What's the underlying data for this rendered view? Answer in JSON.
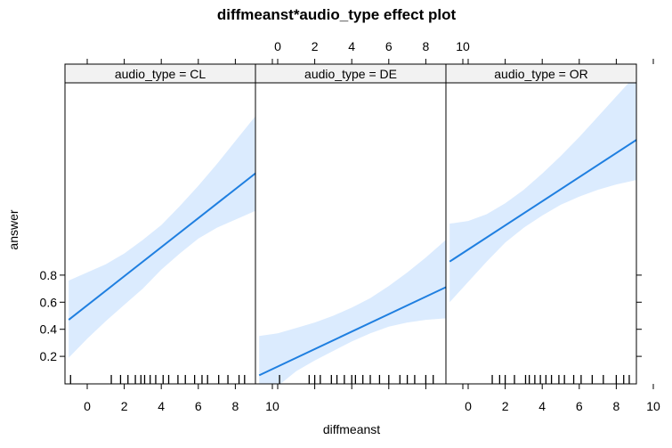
{
  "chart_data": {
    "type": "line",
    "title": "diffmeanst*audio_type effect plot",
    "xlabel": "diffmeanst",
    "ylabel": "answer",
    "x_ticks": [
      0,
      2,
      4,
      6,
      8,
      10
    ],
    "y_ticks": [
      0.2,
      0.4,
      0.6,
      0.8
    ],
    "xlim": [
      -1.15,
      10.3
    ],
    "panels": [
      {
        "strip": "audio_type = CL",
        "line": [
          [
            -1,
            0.47
          ],
          [
            10,
            1.65
          ]
        ],
        "band": {
          "x": [
            -1,
            0,
            1,
            2,
            3,
            4,
            5,
            6,
            7,
            8,
            9,
            10
          ],
          "upper": [
            0.76,
            0.82,
            0.88,
            0.96,
            1.06,
            1.17,
            1.31,
            1.46,
            1.62,
            1.79,
            1.96,
            2.12
          ],
          "lower": [
            0.19,
            0.33,
            0.46,
            0.58,
            0.7,
            0.84,
            0.96,
            1.07,
            1.15,
            1.21,
            1.27,
            1.32
          ]
        },
        "rug": [
          -0.9,
          1.3,
          1.8,
          2.2,
          2.6,
          2.9,
          3.1,
          3.4,
          3.7,
          4.1,
          4.4,
          4.9,
          5.3,
          5.8,
          6.2,
          6.5,
          7.1,
          7.6,
          8.2,
          8.5,
          9.4,
          9.9
        ]
      },
      {
        "strip": "audio_type = DE",
        "line": [
          [
            -1,
            0.06
          ],
          [
            10,
            0.77
          ]
        ],
        "band": {
          "x": [
            -1,
            0,
            1,
            2,
            3,
            4,
            5,
            6,
            7,
            8,
            9,
            10
          ],
          "upper": [
            0.35,
            0.37,
            0.41,
            0.45,
            0.5,
            0.56,
            0.63,
            0.72,
            0.82,
            0.93,
            1.05,
            1.16
          ],
          "lower": [
            -0.11,
            -0.02,
            0.09,
            0.17,
            0.24,
            0.31,
            0.37,
            0.42,
            0.45,
            0.47,
            0.48,
            0.48
          ]
        },
        "rug": [
          0.1,
          1.7,
          2.0,
          2.3,
          2.9,
          3.2,
          3.6,
          4.0,
          4.2,
          4.6,
          5.0,
          5.5,
          6.0,
          6.6,
          7.0,
          7.4,
          8.0,
          8.4,
          9.1,
          9.9
        ]
      },
      {
        "strip": "audio_type = OR",
        "line": [
          [
            -1,
            0.9
          ],
          [
            10,
            1.88
          ]
        ],
        "band": {
          "x": [
            -1,
            0,
            1,
            2,
            3,
            4,
            5,
            6,
            7,
            8,
            9,
            10
          ],
          "upper": [
            1.18,
            1.2,
            1.25,
            1.33,
            1.43,
            1.55,
            1.68,
            1.82,
            1.97,
            2.12,
            2.27,
            2.42
          ],
          "lower": [
            0.6,
            0.75,
            0.9,
            1.04,
            1.15,
            1.24,
            1.32,
            1.38,
            1.43,
            1.47,
            1.5,
            1.52
          ]
        },
        "rug": [
          1.3,
          1.7,
          2.0,
          2.5,
          3.1,
          3.3,
          3.6,
          3.9,
          4.2,
          4.5,
          4.9,
          5.2,
          5.7,
          6.1,
          6.7,
          7.3,
          8.0,
          8.4,
          8.7,
          9.2,
          9.9
        ]
      }
    ],
    "colors": {
      "line": "#1f7fe0",
      "band": "#dbebfe",
      "strip": "#f2f2f2"
    }
  }
}
